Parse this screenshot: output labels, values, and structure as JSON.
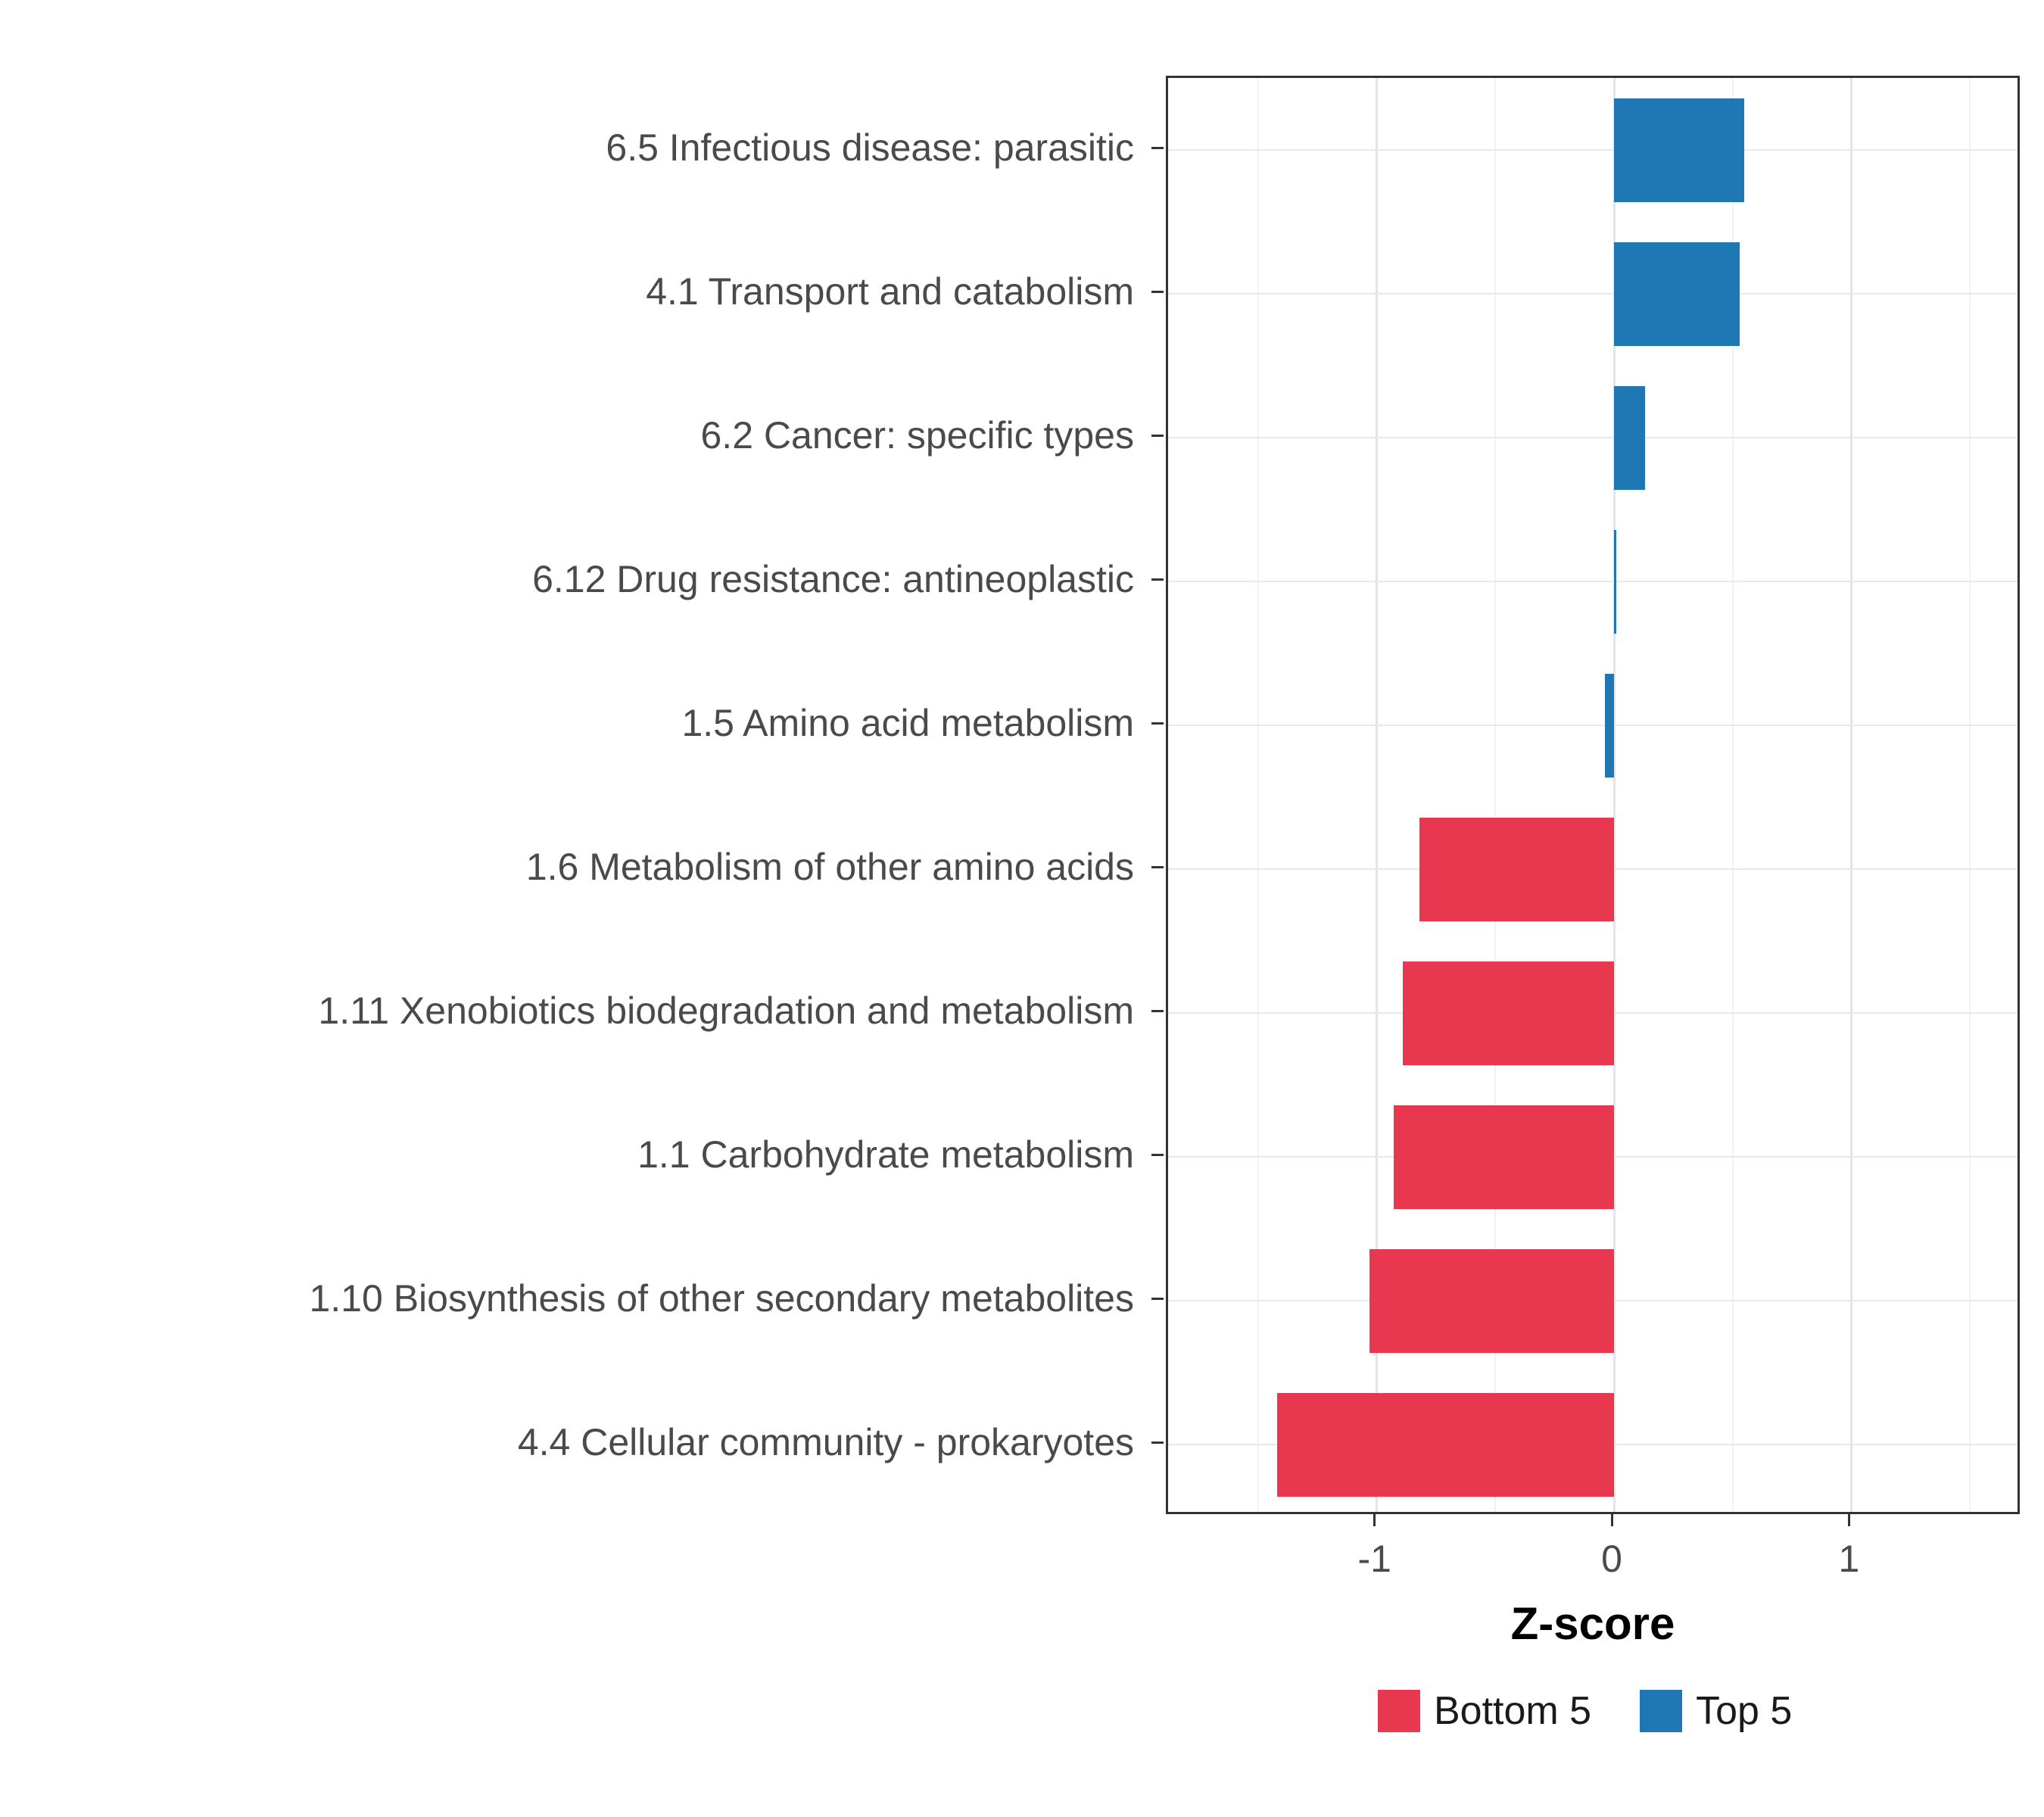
{
  "chart_data": {
    "type": "bar",
    "orientation": "horizontal",
    "title": "",
    "xlabel": "Z-score",
    "ylabel": "",
    "xlim": [
      -1.88,
      1.72
    ],
    "xticks": [
      -1,
      0,
      1
    ],
    "xtick_labels": [
      "-1",
      "0",
      "1"
    ],
    "minor_xticks": [
      -1.5,
      -0.5,
      0.5,
      1.5
    ],
    "grid": true,
    "legend_position": "bottom-right",
    "categories": [
      "6.5 Infectious disease: parasitic",
      "4.1 Transport and catabolism",
      "6.2 Cancer: specific types",
      "6.12 Drug resistance: antineoplastic",
      "1.5 Amino acid metabolism",
      "1.6 Metabolism of other amino acids",
      "1.11 Xenobiotics biodegradation and metabolism",
      "1.1 Carbohydrate metabolism",
      "1.10 Biosynthesis of other secondary metabolites",
      "4.4 Cellular community - prokaryotes"
    ],
    "values": [
      0.55,
      0.53,
      0.13,
      0.01,
      -0.04,
      -0.82,
      -0.89,
      -0.93,
      -1.03,
      -1.42
    ],
    "groups": [
      "Top 5",
      "Top 5",
      "Top 5",
      "Top 5",
      "Top 5",
      "Bottom 5",
      "Bottom 5",
      "Bottom 5",
      "Bottom 5",
      "Bottom 5"
    ],
    "colors": {
      "Top 5": "#1f78b4",
      "Bottom 5": "#e8384f"
    },
    "legend": [
      {
        "label": "Bottom 5",
        "color": "#e8384f"
      },
      {
        "label": "Top 5",
        "color": "#1f78b4"
      }
    ]
  }
}
